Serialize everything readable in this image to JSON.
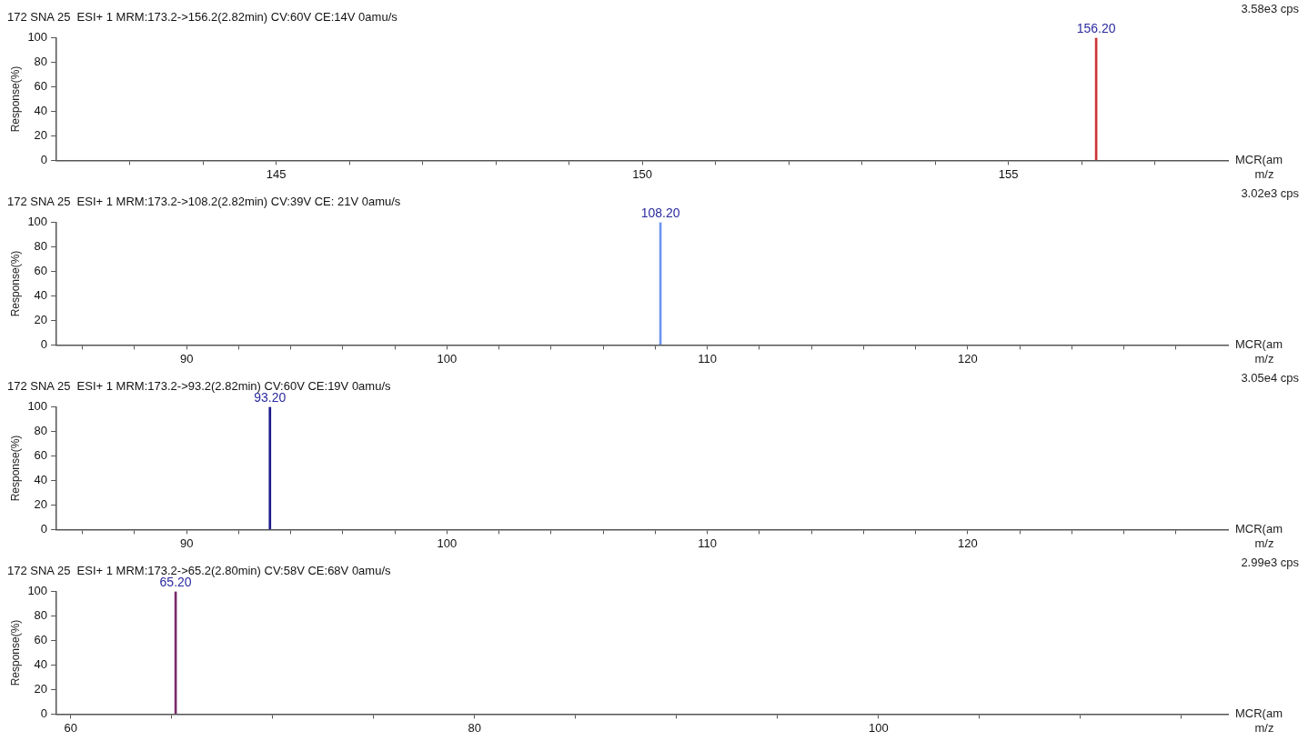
{
  "chart_data": [
    {
      "type": "bar",
      "title": "172 SNA 25  ESI+ 1 MRM:173.2->156.2(2.82min) CV:60V CE:14V 0amu/s",
      "ylabel": "Response(%)",
      "xlabel": "m/z",
      "annotations": [
        "3.58e3 cps",
        "MCR(am",
        {
          "text": "156.20",
          "x": 156.2,
          "y": 100
        }
      ],
      "x": [
        156.2
      ],
      "values": [
        100
      ],
      "color": "#cc3333",
      "xlim": [
        142,
        158
      ],
      "xticks": [
        {
          "value": 143,
          "label": null
        },
        {
          "value": 144,
          "label": null
        },
        145,
        {
          "value": 146,
          "label": null
        },
        {
          "value": 147,
          "label": null
        },
        {
          "value": 148,
          "label": null
        },
        {
          "value": 149,
          "label": null
        },
        150,
        {
          "value": 151,
          "label": null
        },
        {
          "value": 152,
          "label": null
        },
        {
          "value": 153,
          "label": null
        },
        {
          "value": 154,
          "label": null
        },
        155,
        {
          "value": 156,
          "label": null
        },
        {
          "value": 157,
          "label": null
        }
      ],
      "ylim": [
        0,
        100
      ],
      "yticks": [
        0,
        20,
        40,
        60,
        80,
        100
      ]
    },
    {
      "type": "bar",
      "title": "172 SNA 25  ESI+ 1 MRM:173.2->108.2(2.82min) CV:39V CE: 21V 0amu/s",
      "ylabel": "Response(%)",
      "xlabel": "m/z",
      "annotations": [
        "3.02e3 cps",
        "MCR(am",
        {
          "text": "108.20",
          "x": 108.2,
          "y": 100
        }
      ],
      "x": [
        108.2
      ],
      "values": [
        100
      ],
      "color": "#6f95f0",
      "xlim": [
        85,
        130
      ],
      "xticks": [
        {
          "value": 86,
          "label": null
        },
        {
          "value": 88,
          "label": null
        },
        90,
        {
          "value": 92,
          "label": null
        },
        {
          "value": 94,
          "label": null
        },
        {
          "value": 96,
          "label": null
        },
        {
          "value": 98,
          "label": null
        },
        100,
        {
          "value": 102,
          "label": null
        },
        {
          "value": 104,
          "label": null
        },
        {
          "value": 106,
          "label": null
        },
        {
          "value": 108,
          "label": null
        },
        110,
        {
          "value": 112,
          "label": null
        },
        {
          "value": 114,
          "label": null
        },
        {
          "value": 116,
          "label": null
        },
        {
          "value": 118,
          "label": null
        },
        120,
        {
          "value": 122,
          "label": null
        },
        {
          "value": 124,
          "label": null
        },
        {
          "value": 126,
          "label": null
        },
        {
          "value": 128,
          "label": null
        }
      ],
      "ylim": [
        0,
        100
      ],
      "yticks": [
        0,
        20,
        40,
        60,
        80,
        100
      ]
    },
    {
      "type": "bar",
      "title": "172 SNA 25  ESI+ 1 MRM:173.2->93.2(2.82min) CV:60V CE:19V 0amu/s",
      "ylabel": "Response(%)",
      "xlabel": "m/z",
      "annotations": [
        "3.05e4 cps",
        "MCR(am",
        {
          "text": "93.20",
          "x": 93.2,
          "y": 100
        }
      ],
      "x": [
        93.2
      ],
      "values": [
        100
      ],
      "color": "#1a1a8c",
      "xlim": [
        85,
        130
      ],
      "xticks": [
        {
          "value": 86,
          "label": null
        },
        {
          "value": 88,
          "label": null
        },
        90,
        {
          "value": 92,
          "label": null
        },
        {
          "value": 94,
          "label": null
        },
        {
          "value": 96,
          "label": null
        },
        {
          "value": 98,
          "label": null
        },
        100,
        {
          "value": 102,
          "label": null
        },
        {
          "value": 104,
          "label": null
        },
        {
          "value": 106,
          "label": null
        },
        {
          "value": 108,
          "label": null
        },
        110,
        {
          "value": 112,
          "label": null
        },
        {
          "value": 114,
          "label": null
        },
        {
          "value": 116,
          "label": null
        },
        {
          "value": 118,
          "label": null
        },
        120,
        {
          "value": 122,
          "label": null
        },
        {
          "value": 124,
          "label": null
        },
        {
          "value": 126,
          "label": null
        },
        {
          "value": 128,
          "label": null
        }
      ],
      "ylim": [
        0,
        100
      ],
      "yticks": [
        0,
        20,
        40,
        60,
        80,
        100
      ]
    },
    {
      "type": "bar",
      "title": "172 SNA 25  ESI+ 1 MRM:173.2->65.2(2.80min) CV:58V CE:68V 0amu/s",
      "ylabel": "Response(%)",
      "xlabel": "m/z",
      "annotations": [
        "2.99e3 cps",
        "MCR(am",
        {
          "text": "65.20",
          "x": 65.2,
          "y": 100
        }
      ],
      "x": [
        65.2
      ],
      "values": [
        100
      ],
      "color": "#7a2a6a",
      "xlim": [
        59.3,
        117.3
      ],
      "xticks": [
        60,
        {
          "value": 65,
          "label": null
        },
        {
          "value": 70,
          "label": null
        },
        {
          "value": 75,
          "label": null
        },
        80,
        {
          "value": 85,
          "label": null
        },
        {
          "value": 90,
          "label": null
        },
        {
          "value": 95,
          "label": null
        },
        100,
        {
          "value": 105,
          "label": null
        },
        {
          "value": 110,
          "label": null
        },
        {
          "value": 115,
          "label": null
        }
      ],
      "ylim": [
        0,
        100
      ],
      "yticks": [
        0,
        20,
        40,
        60,
        80,
        100
      ]
    }
  ]
}
